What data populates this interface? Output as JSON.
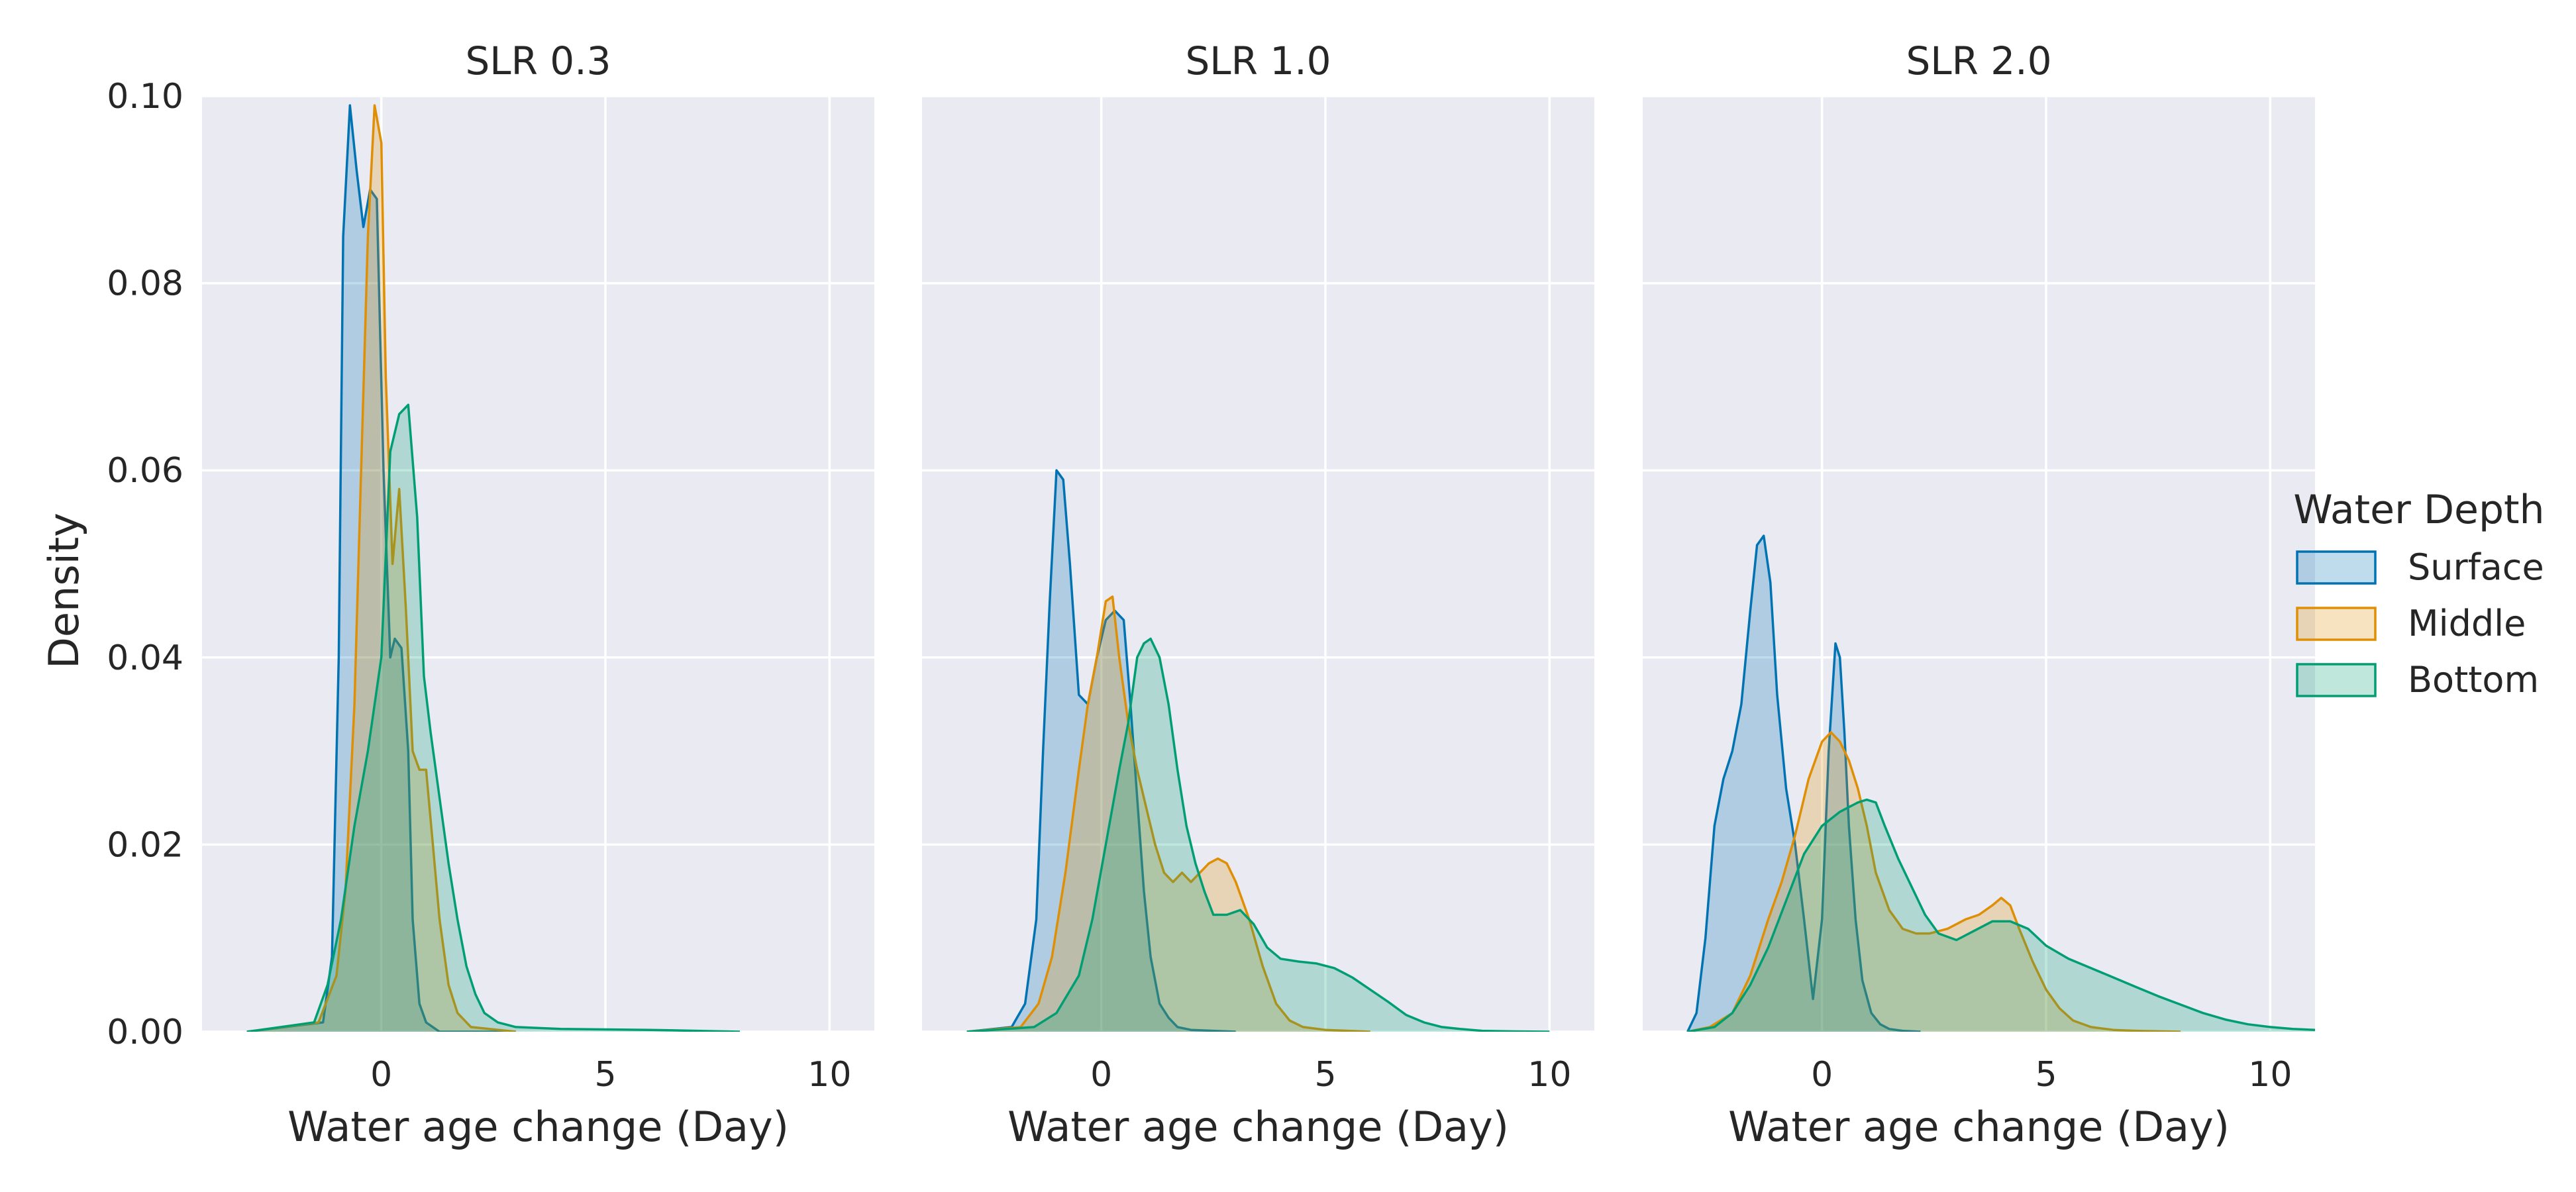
{
  "chart_data": {
    "type": "area",
    "ylabel": "Density",
    "xlabel": "Water age change (Day)",
    "xlim": [
      -4,
      11
    ],
    "ylim": [
      0,
      0.1
    ],
    "xticks": [
      0,
      5,
      10
    ],
    "yticks": [
      "0.00",
      "0.02",
      "0.04",
      "0.06",
      "0.08",
      "0.10"
    ],
    "grid": true,
    "legend": {
      "title": "Water Depth",
      "placement": "right",
      "entries": [
        "Surface",
        "Middle",
        "Bottom"
      ]
    },
    "colors": {
      "Surface": "#0173b2",
      "Middle": "#de8f05",
      "Bottom": "#029e73"
    },
    "panels": [
      {
        "title": "SLR 0.3",
        "series": [
          {
            "name": "Surface",
            "x": [
              -3.0,
              -1.3,
              -1.1,
              -0.95,
              -0.85,
              -0.7,
              -0.55,
              -0.4,
              -0.25,
              -0.1,
              0.05,
              0.2,
              0.3,
              0.45,
              0.6,
              0.7,
              0.85,
              1.0,
              1.3,
              3.0
            ],
            "y": [
              0,
              0.001,
              0.008,
              0.04,
              0.085,
              0.099,
              0.092,
              0.086,
              0.09,
              0.089,
              0.06,
              0.04,
              0.042,
              0.041,
              0.03,
              0.012,
              0.003,
              0.001,
              0,
              0
            ]
          },
          {
            "name": "Middle",
            "x": [
              -3.0,
              -1.4,
              -1.0,
              -0.8,
              -0.6,
              -0.45,
              -0.3,
              -0.15,
              0.0,
              0.1,
              0.25,
              0.4,
              0.55,
              0.7,
              0.85,
              1.0,
              1.15,
              1.3,
              1.5,
              1.7,
              2.0,
              3.0
            ],
            "y": [
              0,
              0.001,
              0.006,
              0.015,
              0.035,
              0.06,
              0.085,
              0.099,
              0.095,
              0.07,
              0.05,
              0.058,
              0.045,
              0.03,
              0.028,
              0.028,
              0.02,
              0.012,
              0.005,
              0.002,
              0.0005,
              0
            ]
          },
          {
            "name": "Bottom",
            "x": [
              -3.0,
              -1.5,
              -1.2,
              -0.9,
              -0.6,
              -0.3,
              0.0,
              0.2,
              0.4,
              0.6,
              0.8,
              0.95,
              1.1,
              1.3,
              1.5,
              1.7,
              1.9,
              2.1,
              2.3,
              2.6,
              3.0,
              4.0,
              6.0,
              8.0
            ],
            "y": [
              0,
              0.001,
              0.005,
              0.012,
              0.022,
              0.03,
              0.04,
              0.062,
              0.066,
              0.067,
              0.055,
              0.038,
              0.032,
              0.025,
              0.018,
              0.012,
              0.007,
              0.004,
              0.002,
              0.001,
              0.0005,
              0.0003,
              0.0002,
              0
            ]
          }
        ]
      },
      {
        "title": "SLR 1.0",
        "series": [
          {
            "name": "Surface",
            "x": [
              -3.0,
              -2.0,
              -1.7,
              -1.45,
              -1.3,
              -1.15,
              -1.0,
              -0.85,
              -0.7,
              -0.5,
              -0.3,
              -0.1,
              0.1,
              0.3,
              0.5,
              0.65,
              0.8,
              0.95,
              1.1,
              1.3,
              1.5,
              1.7,
              2.0,
              3.0
            ],
            "y": [
              0,
              0.0005,
              0.003,
              0.012,
              0.03,
              0.046,
              0.06,
              0.059,
              0.05,
              0.036,
              0.035,
              0.04,
              0.044,
              0.045,
              0.044,
              0.035,
              0.025,
              0.015,
              0.008,
              0.003,
              0.0015,
              0.0005,
              0.0002,
              0
            ]
          },
          {
            "name": "Middle",
            "x": [
              -3.0,
              -1.8,
              -1.4,
              -1.1,
              -0.8,
              -0.5,
              -0.3,
              -0.1,
              0.1,
              0.25,
              0.4,
              0.6,
              0.8,
              1.0,
              1.2,
              1.4,
              1.6,
              1.8,
              2.0,
              2.2,
              2.4,
              2.6,
              2.8,
              3.0,
              3.3,
              3.6,
              3.9,
              4.2,
              4.5,
              5.0,
              6.0
            ],
            "y": [
              0,
              0.0005,
              0.003,
              0.008,
              0.017,
              0.028,
              0.035,
              0.04,
              0.046,
              0.0465,
              0.04,
              0.033,
              0.028,
              0.024,
              0.02,
              0.017,
              0.016,
              0.017,
              0.016,
              0.017,
              0.018,
              0.0185,
              0.018,
              0.016,
              0.012,
              0.007,
              0.003,
              0.0012,
              0.0005,
              0.0002,
              0
            ]
          },
          {
            "name": "Bottom",
            "x": [
              -3.0,
              -1.5,
              -1.0,
              -0.5,
              -0.2,
              0.1,
              0.4,
              0.6,
              0.8,
              0.95,
              1.1,
              1.3,
              1.5,
              1.7,
              1.9,
              2.1,
              2.3,
              2.5,
              2.8,
              3.1,
              3.4,
              3.7,
              4.0,
              4.4,
              4.8,
              5.2,
              5.6,
              6.0,
              6.4,
              6.8,
              7.2,
              7.6,
              8.0,
              8.5,
              9.0,
              10.0
            ],
            "y": [
              0,
              0.0005,
              0.002,
              0.006,
              0.012,
              0.02,
              0.028,
              0.033,
              0.04,
              0.0415,
              0.042,
              0.04,
              0.035,
              0.028,
              0.022,
              0.018,
              0.015,
              0.0125,
              0.0125,
              0.013,
              0.0115,
              0.009,
              0.0078,
              0.0075,
              0.0073,
              0.0068,
              0.0058,
              0.0045,
              0.0032,
              0.0018,
              0.001,
              0.0005,
              0.0003,
              0.0001,
              5e-05,
              0
            ]
          }
        ]
      },
      {
        "title": "SLR 2.0",
        "series": [
          {
            "name": "Surface",
            "x": [
              -3.0,
              -2.8,
              -2.6,
              -2.4,
              -2.2,
              -2.0,
              -1.8,
              -1.6,
              -1.45,
              -1.3,
              -1.15,
              -1.0,
              -0.8,
              -0.6,
              -0.4,
              -0.2,
              0.0,
              0.15,
              0.3,
              0.4,
              0.5,
              0.6,
              0.75,
              0.9,
              1.1,
              1.3,
              1.5,
              1.8,
              2.2
            ],
            "y": [
              0,
              0.002,
              0.01,
              0.022,
              0.027,
              0.03,
              0.035,
              0.045,
              0.052,
              0.053,
              0.048,
              0.036,
              0.026,
              0.02,
              0.012,
              0.0035,
              0.012,
              0.03,
              0.0415,
              0.04,
              0.032,
              0.022,
              0.012,
              0.0055,
              0.002,
              0.0008,
              0.0003,
              0.0001,
              0
            ]
          },
          {
            "name": "Middle",
            "x": [
              -3.0,
              -2.5,
              -2.0,
              -1.6,
              -1.2,
              -0.9,
              -0.6,
              -0.3,
              0.0,
              0.2,
              0.4,
              0.6,
              0.8,
              1.0,
              1.2,
              1.5,
              1.8,
              2.1,
              2.4,
              2.8,
              3.2,
              3.5,
              3.8,
              4.0,
              4.2,
              4.4,
              4.7,
              5.0,
              5.3,
              5.6,
              6.0,
              6.5,
              7.0,
              8.0
            ],
            "y": [
              0,
              0.0005,
              0.002,
              0.006,
              0.012,
              0.016,
              0.021,
              0.027,
              0.031,
              0.032,
              0.031,
              0.029,
              0.026,
              0.022,
              0.017,
              0.013,
              0.011,
              0.0105,
              0.0105,
              0.011,
              0.012,
              0.0125,
              0.0135,
              0.0143,
              0.0135,
              0.011,
              0.0075,
              0.0045,
              0.0025,
              0.0012,
              0.0005,
              0.0002,
              0.0001,
              0
            ]
          },
          {
            "name": "Bottom",
            "x": [
              -3.0,
              -2.4,
              -2.0,
              -1.6,
              -1.2,
              -0.8,
              -0.4,
              0.0,
              0.4,
              0.8,
              1.0,
              1.2,
              1.4,
              1.7,
              2.0,
              2.3,
              2.6,
              3.0,
              3.4,
              3.8,
              4.2,
              4.6,
              5.0,
              5.5,
              6.0,
              6.5,
              7.0,
              7.5,
              8.0,
              8.5,
              9.0,
              9.5,
              10.0,
              10.5,
              11.0
            ],
            "y": [
              0,
              0.0005,
              0.002,
              0.005,
              0.009,
              0.014,
              0.019,
              0.022,
              0.0235,
              0.0245,
              0.0248,
              0.0245,
              0.022,
              0.0185,
              0.0155,
              0.0125,
              0.0105,
              0.0098,
              0.0108,
              0.0118,
              0.0118,
              0.011,
              0.0092,
              0.0078,
              0.0068,
              0.0058,
              0.0048,
              0.0038,
              0.0029,
              0.002,
              0.0013,
              0.0008,
              0.0005,
              0.0003,
              0.0002
            ]
          }
        ]
      }
    ]
  }
}
